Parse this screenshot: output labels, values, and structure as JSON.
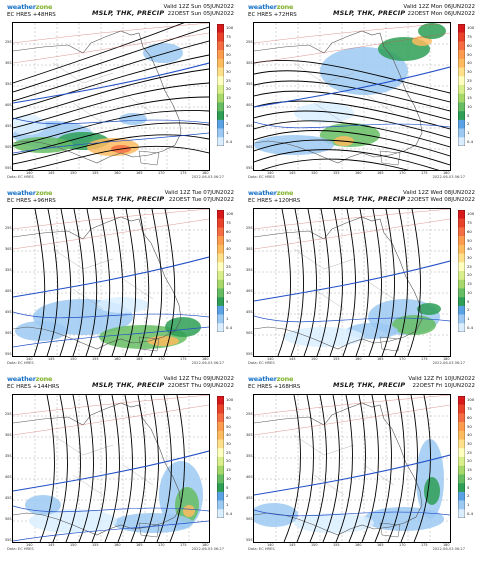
{
  "colorbar": {
    "labels": [
      "100",
      "75",
      "60",
      "50",
      "40",
      "30",
      "25",
      "20",
      "15",
      "10",
      "5",
      "2",
      "1",
      "0.4"
    ],
    "colors": [
      "#d7191c",
      "#e8432a",
      "#f46d43",
      "#fd9b4e",
      "#fdbb5f",
      "#fee08b",
      "#ffffbf",
      "#d9ef8b",
      "#a6d96a",
      "#66bd63",
      "#2e9f55",
      "#5aa2e3",
      "#9cc9f2",
      "#dbeeff"
    ]
  },
  "x_ticks": [
    "140",
    "145",
    "150",
    "155",
    "160",
    "165",
    "170",
    "175",
    "180"
  ],
  "y_ticks": [
    "25S",
    "30S",
    "35S",
    "40S",
    "45S",
    "50S",
    "55S"
  ],
  "panels": [
    {
      "brand_a": "weather",
      "brand_b": "zone",
      "run": "EC HRES +48HRS",
      "title": "MSLP, THK, PRECIP",
      "valid_utc": "Valid 12Z Sun 05JUN2022",
      "valid_local": "22OEST Sun 05JUN2022",
      "foot_left": "Data: EC HRES",
      "foot_right": "2022-06-03 06:27"
    },
    {
      "brand_a": "weather",
      "brand_b": "zone",
      "run": "EC HRES +72HRS",
      "title": "MSLP, THK, PRECIP",
      "valid_utc": "Valid 12Z Mon 06JUN2022",
      "valid_local": "22OEST Mon 06JUN2022",
      "foot_left": "Data: EC HRES",
      "foot_right": "2022-06-03 06:27"
    },
    {
      "brand_a": "weather",
      "brand_b": "zone",
      "run": "EC HRES +96HRS",
      "title": "MSLP, THK, PRECIP",
      "valid_utc": "Valid 12Z Tue 07JUN2022",
      "valid_local": "22OEST Tue 07JUN2022",
      "foot_left": "Data: EC HRES",
      "foot_right": "2022-06-03 06:27"
    },
    {
      "brand_a": "weather",
      "brand_b": "zone",
      "run": "EC HRES +120HRS",
      "title": "MSLP, THK, PRECIP",
      "valid_utc": "Valid 12Z Wed 08JUN2022",
      "valid_local": "22OEST Wed 08JUN2022",
      "foot_left": "Data: EC HRES",
      "foot_right": "2022-06-03 06:27"
    },
    {
      "brand_a": "weather",
      "brand_b": "zone",
      "run": "EC HRES +144HRS",
      "title": "MSLP, THK, PRECIP",
      "valid_utc": "Valid 12Z Thu 09JUN2022",
      "valid_local": "22OEST Thu 09JUN2022",
      "foot_left": "Data: EC HRES",
      "foot_right": "2022-06-03 06:27"
    },
    {
      "brand_a": "weather",
      "brand_b": "zone",
      "run": "EC HRES +168HRS",
      "title": "MSLP, THK, PRECIP",
      "valid_utc": "Valid 12Z Fri 10JUN2022",
      "valid_local": "22OEST Fri 10JUN2022",
      "foot_left": "Data: EC HRES",
      "foot_right": "2022-06-03 06:27"
    }
  ]
}
